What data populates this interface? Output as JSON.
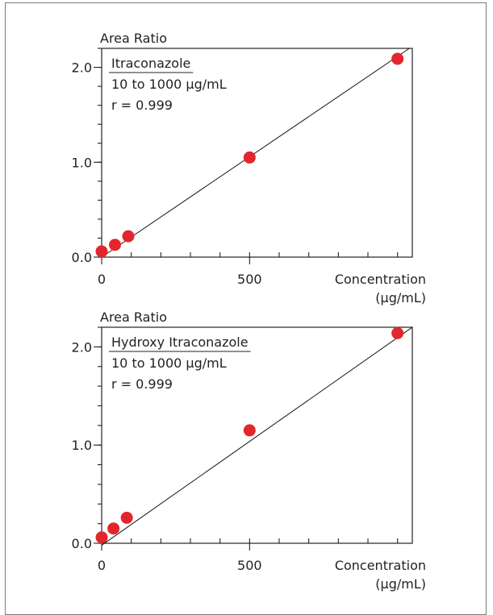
{
  "chart_data": [
    {
      "type": "scatter",
      "ylabel": "Area Ratio",
      "xlabel": "Concentration",
      "xunit": "(µg/mL)",
      "legend": {
        "name": "Itraconazole",
        "range": "10 to 1000 µg/mL",
        "r": "r = 0.999",
        "placement": "top-left"
      },
      "xlim": [
        0,
        1050
      ],
      "ylim": [
        0,
        2.2
      ],
      "xticks": [
        {
          "value": 0,
          "label": "0"
        },
        {
          "value": 500,
          "label": "500"
        }
      ],
      "xminor_step": 100,
      "yticks": [
        {
          "value": 0,
          "label": "0.0"
        },
        {
          "value": 1,
          "label": "1.0"
        },
        {
          "value": 2,
          "label": "2.0"
        }
      ],
      "yminor_step": 0.2,
      "points": [
        {
          "x": 0,
          "y": 0.06
        },
        {
          "x": 45,
          "y": 0.13
        },
        {
          "x": 90,
          "y": 0.22
        },
        {
          "x": 500,
          "y": 1.05
        },
        {
          "x": 1000,
          "y": 2.09
        }
      ],
      "fit_line": {
        "x1": 0,
        "y1": 0.0,
        "x2": 1040,
        "y2": 2.2
      },
      "point_color": "#e3262d"
    },
    {
      "type": "scatter",
      "ylabel": "Area Ratio",
      "xlabel": "Concentration",
      "xunit": "(µg/mL)",
      "legend": {
        "name": "Hydroxy Itraconazole",
        "range": "10 to 1000 µg/mL",
        "r": "r = 0.999",
        "placement": "top-left"
      },
      "xlim": [
        0,
        1050
      ],
      "ylim": [
        0,
        2.2
      ],
      "xticks": [
        {
          "value": 0,
          "label": "0"
        },
        {
          "value": 500,
          "label": "500"
        }
      ],
      "xminor_step": 100,
      "yticks": [
        {
          "value": 0,
          "label": "0.0"
        },
        {
          "value": 1,
          "label": "1.0"
        },
        {
          "value": 2,
          "label": "2.0"
        }
      ],
      "yminor_step": 0.2,
      "points": [
        {
          "x": 0,
          "y": 0.06
        },
        {
          "x": 40,
          "y": 0.15
        },
        {
          "x": 85,
          "y": 0.26
        },
        {
          "x": 500,
          "y": 1.15
        },
        {
          "x": 1000,
          "y": 2.14
        }
      ],
      "fit_line": {
        "x1": 0,
        "y1": -0.02,
        "x2": 1050,
        "y2": 2.21
      },
      "point_color": "#e3262d"
    }
  ]
}
